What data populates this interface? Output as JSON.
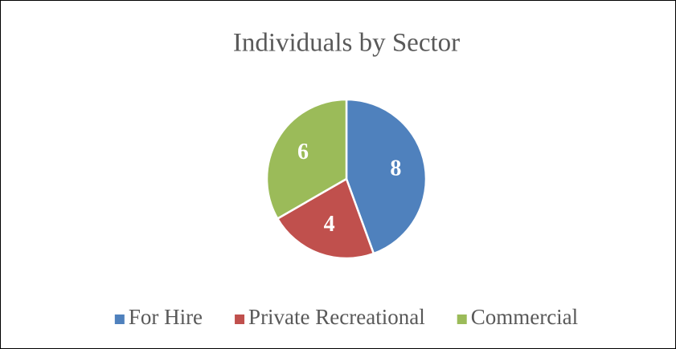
{
  "chart_data": {
    "type": "pie",
    "title": "Individuals by Sector",
    "categories": [
      "For Hire",
      "Private Recreational",
      "Commercial"
    ],
    "values": [
      8,
      4,
      6
    ],
    "colors": [
      "#4f81bd",
      "#c0504d",
      "#9bbb59"
    ],
    "legend": "bottom"
  }
}
